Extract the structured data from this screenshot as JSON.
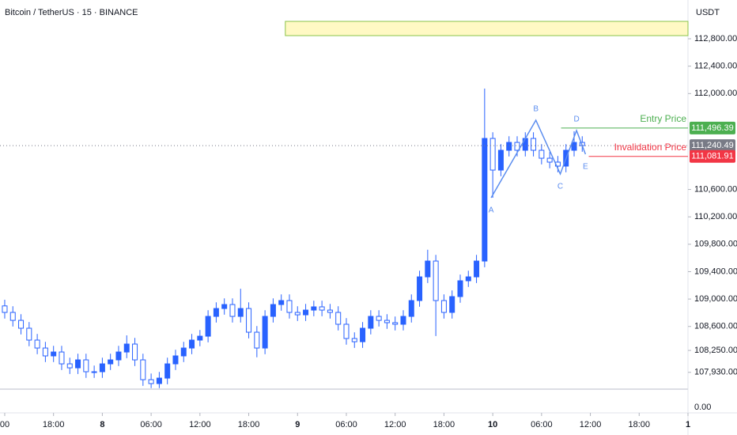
{
  "chart_data": {
    "type": "candlestick",
    "title": "Bitcoin / TetherUS · 15 · BINANCE",
    "currency": "USDT",
    "up_color": "#2962ff",
    "down_color": "#2962ff",
    "xlim": [
      -0.58,
      84.0
    ],
    "ylim": [
      107685,
      113366
    ],
    "xticks": [
      {
        "value": 0,
        "label": "00"
      },
      {
        "value": 6,
        "label": "18:00"
      },
      12,
      {
        "value": 18,
        "label": "06:00"
      },
      {
        "value": 24,
        "label": "12:00"
      },
      {
        "value": 30,
        "label": "18:00"
      },
      36,
      {
        "value": 42,
        "label": "06:00"
      },
      {
        "value": 48,
        "label": "12:00"
      },
      {
        "value": 54,
        "label": "18:00"
      },
      60,
      {
        "value": 66,
        "label": "06:00"
      },
      {
        "value": 72,
        "label": "12:00"
      },
      {
        "value": 78,
        "label": "18:00"
      },
      84
    ],
    "xtick_display": [
      "00",
      "18:00",
      "8",
      "06:00",
      "12:00",
      "18:00",
      "9",
      "06:00",
      "12:00",
      "18:00",
      "10",
      "06:00",
      "12:00",
      "18:00",
      "1"
    ],
    "yticks": [
      {
        "value": 112800,
        "label": "112,800.00"
      },
      {
        "value": 112400,
        "label": "112,400.00"
      },
      {
        "value": 112000,
        "label": "112,000.00"
      },
      {
        "value": 110600,
        "label": "110,600.00"
      },
      {
        "value": 110200,
        "label": "110,200.00"
      },
      {
        "value": 109800,
        "label": "109,800.00"
      },
      {
        "value": 109400,
        "label": "109,400.00"
      },
      {
        "value": 109000,
        "label": "109,000.00"
      },
      {
        "value": 108600,
        "label": "108,600.00"
      },
      {
        "value": 108250,
        "label": "108,250.00"
      },
      {
        "value": 107930,
        "label": "107,930.00"
      }
    ],
    "lower_pane": {
      "yticks": [
        {
          "value": 0,
          "label": "0.00"
        }
      ]
    },
    "x": [
      0,
      1,
      2,
      3,
      4,
      5,
      6,
      7,
      8,
      9,
      10,
      11,
      12,
      13,
      14,
      15,
      16,
      17,
      18,
      19,
      20,
      21,
      22,
      23,
      24,
      25,
      26,
      27,
      28,
      29,
      30,
      31,
      32,
      33,
      34,
      35,
      36,
      37,
      38,
      39,
      40,
      41,
      42,
      43,
      44,
      45,
      46,
      47,
      48,
      49,
      50,
      51,
      52,
      53,
      54,
      55,
      56,
      57,
      58,
      59,
      60,
      61,
      62,
      63,
      64,
      65,
      66,
      67,
      68,
      69,
      70,
      71
    ],
    "open": [
      108900,
      108805,
      108689,
      108574,
      108401,
      108285,
      108170,
      108227,
      108054,
      107996,
      108112,
      107939,
      107939,
      108054,
      108112,
      108227,
      108343,
      108112,
      107823,
      107766,
      107846,
      108054,
      108170,
      108285,
      108401,
      108458,
      108747,
      108862,
      108920,
      108747,
      108862,
      108516,
      108285,
      108747,
      108920,
      108978,
      108805,
      108770,
      108839,
      108886,
      108839,
      108805,
      108632,
      108424,
      108377,
      108574,
      108747,
      108689,
      108655,
      108632,
      108747,
      108978,
      109324,
      109555,
      108978,
      108805,
      109036,
      109267,
      109324,
      109555,
      111345,
      110883,
      111172,
      111287,
      111172,
      111345,
      111172,
      111056,
      110999,
      110941,
      111172,
      111287
    ],
    "high": [
      108990,
      108895,
      108779,
      108664,
      108491,
      108375,
      108317,
      108317,
      108144,
      108202,
      108202,
      108029,
      108144,
      108202,
      108317,
      108470,
      108433,
      108202,
      107913,
      107936,
      108144,
      108260,
      108375,
      108491,
      108548,
      108837,
      108952,
      109010,
      109010,
      109150,
      108952,
      108606,
      108837,
      109010,
      109068,
      109068,
      108895,
      108929,
      108976,
      108976,
      108929,
      108895,
      108722,
      108514,
      108664,
      108837,
      108837,
      108779,
      108745,
      108837,
      109068,
      109414,
      109720,
      109645,
      109068,
      109126,
      109357,
      109414,
      109645,
      112073,
      111435,
      111262,
      111377,
      111377,
      111435,
      111435,
      111262,
      111146,
      111089,
      111262,
      111450,
      111377
    ],
    "low": [
      108715,
      108599,
      108484,
      108311,
      108195,
      108080,
      108080,
      107964,
      107906,
      107906,
      107849,
      107849,
      107849,
      107964,
      108022,
      108137,
      108022,
      107733,
      107700,
      107700,
      107756,
      107964,
      108080,
      108195,
      108311,
      108368,
      108657,
      108772,
      108657,
      108657,
      108426,
      108150,
      108195,
      108657,
      108830,
      108715,
      108680,
      108680,
      108749,
      108749,
      108715,
      108542,
      108334,
      108287,
      108287,
      108484,
      108599,
      108565,
      108542,
      108542,
      108657,
      108888,
      109234,
      108460,
      108715,
      108715,
      108946,
      109177,
      109234,
      109465,
      110479,
      110793,
      111082,
      111082,
      111082,
      111082,
      110966,
      110909,
      110851,
      110851,
      111082,
      111150
    ],
    "close": [
      108805,
      108689,
      108574,
      108401,
      108285,
      108170,
      108227,
      108054,
      107996,
      108112,
      107939,
      107939,
      108054,
      108112,
      108227,
      108343,
      108112,
      107823,
      107766,
      107846,
      108054,
      108170,
      108285,
      108401,
      108458,
      108747,
      108862,
      108920,
      108747,
      108862,
      108516,
      108285,
      108747,
      108920,
      108978,
      108805,
      108770,
      108839,
      108886,
      108839,
      108805,
      108632,
      108424,
      108377,
      108574,
      108747,
      108689,
      108655,
      108632,
      108747,
      108978,
      109324,
      109555,
      108978,
      108805,
      109036,
      109267,
      109324,
      109555,
      111345,
      110883,
      111172,
      111287,
      111172,
      111345,
      111172,
      111056,
      110999,
      110941,
      111172,
      111287,
      111240
    ],
    "zone": {
      "x": [
        34.5,
        84.0
      ],
      "y": [
        112846,
        113054
      ],
      "color": "#fff9c4",
      "border": "#8bc34a"
    },
    "pattern": {
      "color": "#5b8def",
      "points": [
        {
          "label": "A",
          "x": 59.8,
          "y": 110479
        },
        {
          "label": "B",
          "x": 65.3,
          "y": 111611
        },
        {
          "label": "C",
          "x": 68.3,
          "y": 110826
        },
        {
          "label": "D",
          "x": 70.3,
          "y": 111461
        },
        {
          "label": "E",
          "x": 71.4,
          "y": 111114
        }
      ]
    },
    "price_lines": [
      {
        "name": "Entry Price",
        "value": 111496.39,
        "label": "111,496.39",
        "color": "#4caf50",
        "x_start": 68.4
      },
      {
        "value": 111240.49,
        "label": "111,240.49",
        "color": "#787b86",
        "style": "dotted"
      },
      {
        "name": "Invalidation Price",
        "value": 111081.91,
        "label": "111,081.91",
        "color": "#f23645",
        "x_start": 71.8
      }
    ]
  }
}
